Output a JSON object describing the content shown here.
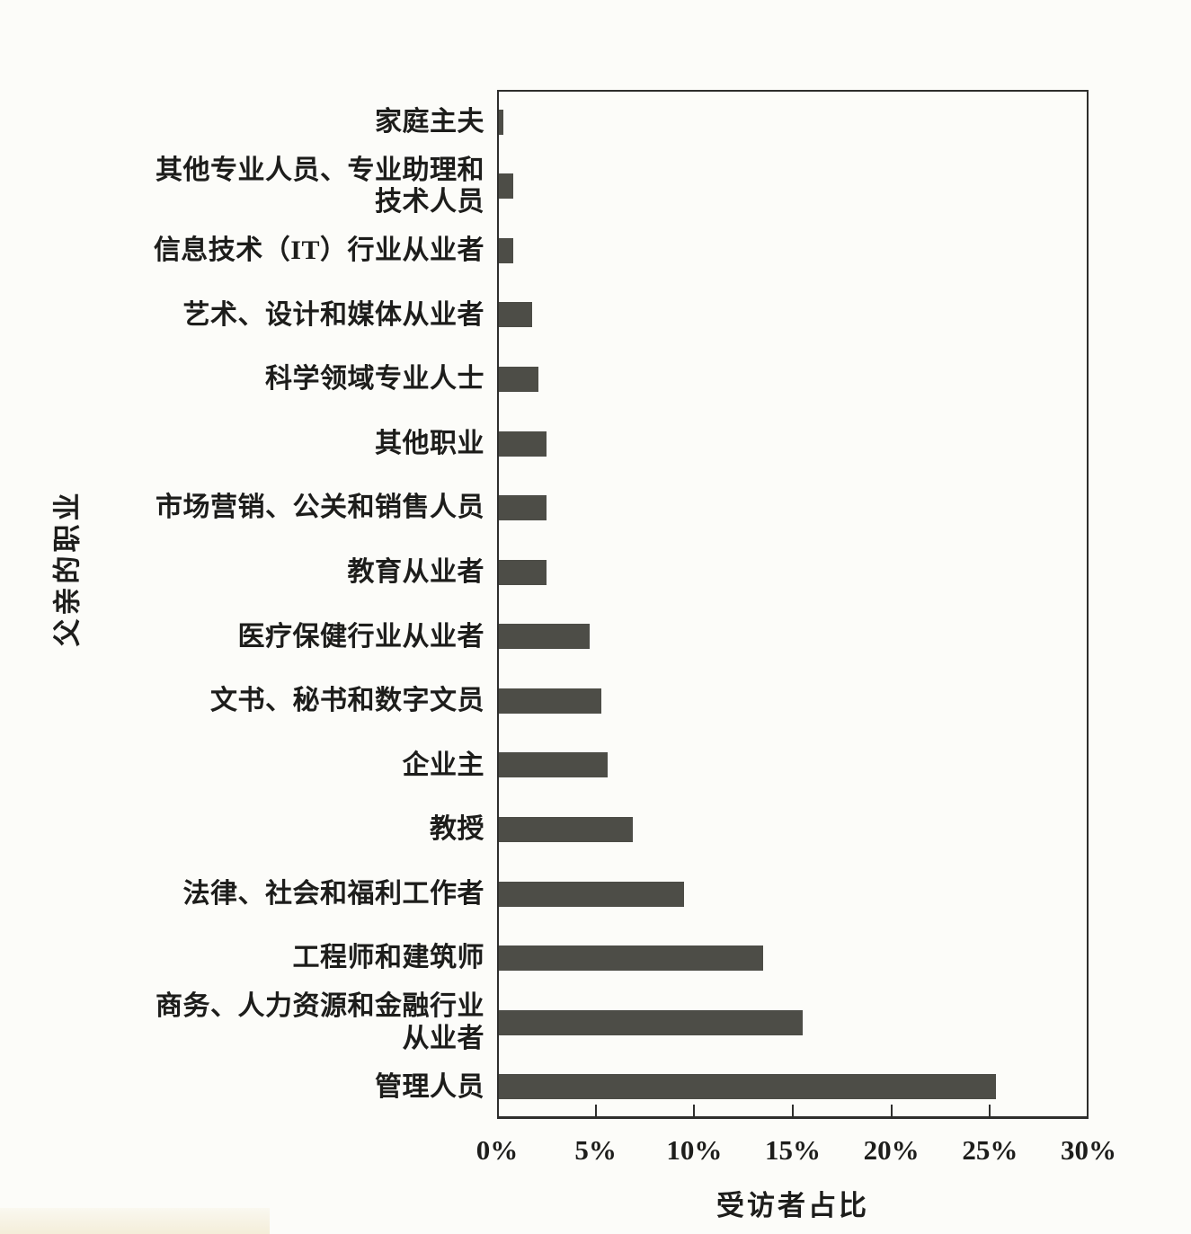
{
  "chart_data": {
    "type": "bar",
    "orientation": "horizontal",
    "title": "",
    "xlabel": "受访者占比",
    "ylabel": "父亲的职业",
    "xlim": [
      0,
      30
    ],
    "x_ticks": [
      "0%",
      "5%",
      "10%",
      "15%",
      "20%",
      "25%",
      "30%"
    ],
    "grid": false,
    "legend": false,
    "bar_color": "#4d4d47",
    "frame_color": "#2e2e2c",
    "background_color": "#fcfcf9",
    "categories": [
      "家庭主夫",
      "其他专业人员、专业助理和\n技术人员",
      "信息技术（IT）行业从业者",
      "艺术、设计和媒体从业者",
      "科学领域专业人士",
      "其他职业",
      "市场营销、公关和销售人员",
      "教育从业者",
      "医疗保健行业从业者",
      "文书、秘书和数字文员",
      "企业主",
      "教授",
      "法律、社会和福利工作者",
      "工程师和建筑师",
      "商务、人力资源和金融行业\n从业者",
      "管理人员"
    ],
    "values": [
      0.3,
      0.8,
      0.8,
      1.8,
      2.1,
      2.5,
      2.5,
      2.5,
      4.7,
      5.3,
      5.6,
      6.9,
      9.5,
      13.5,
      15.5,
      25.3
    ]
  }
}
